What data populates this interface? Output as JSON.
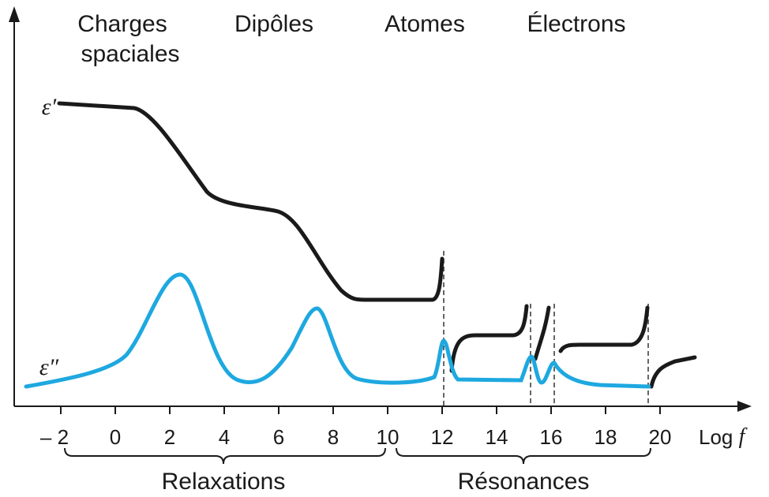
{
  "regions": [
    [
      "Charges",
      "spaciales"
    ],
    [
      "Dipôles"
    ],
    [
      "Atomes"
    ],
    [
      "Électrons"
    ]
  ],
  "curve_labels": {
    "real": "ε′",
    "imaginary": "ε″"
  },
  "x_axis": {
    "ticks": [
      "– 2",
      "0",
      "2",
      "4",
      "6",
      "8",
      "10",
      "12",
      "14",
      "16",
      "18",
      "20"
    ],
    "label": "Log",
    "variable": "f"
  },
  "groups": [
    "Relaxations",
    "Résonances"
  ]
}
